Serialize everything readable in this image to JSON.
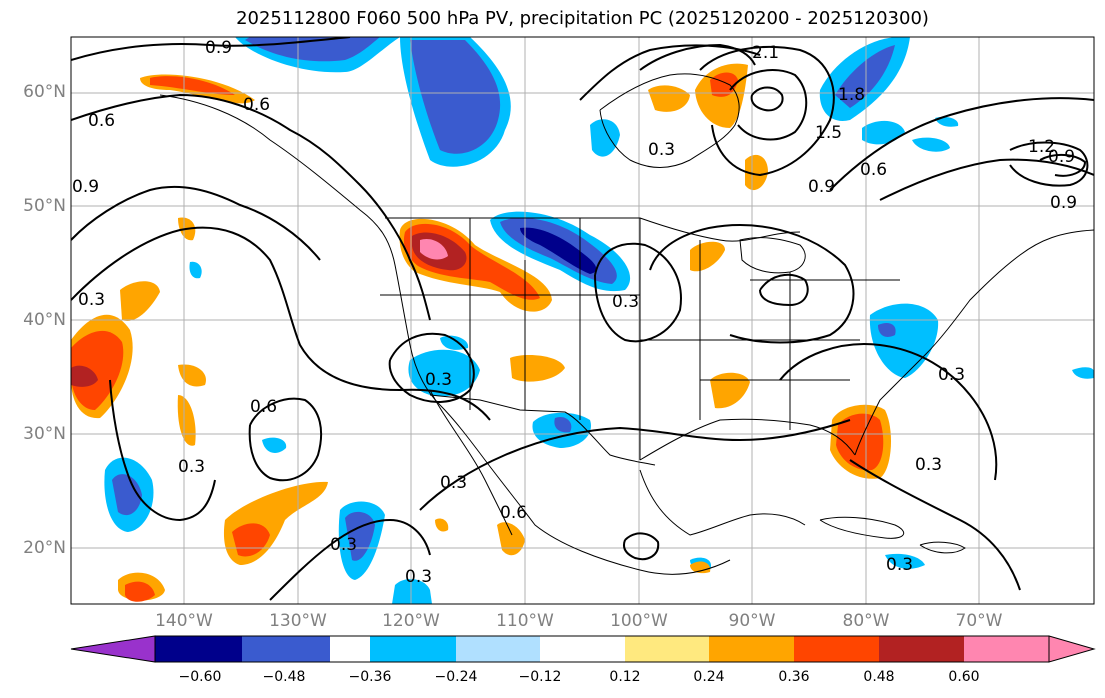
{
  "title": "2025112800 F060 500 hPa PV, precipitation PC (2025120200 - 2025120300)",
  "map": {
    "lat_labels": [
      "60°N",
      "50°N",
      "40°N",
      "30°N",
      "20°N"
    ],
    "lon_labels": [
      "140°W",
      "130°W",
      "120°W",
      "110°W",
      "100°W",
      "90°W",
      "80°W",
      "70°W"
    ],
    "contour_labels": [
      "0.9",
      "0.6",
      "0.6",
      "0.9",
      "0.3",
      "0.3",
      "0.3",
      "0.6",
      "0.3",
      "0.3",
      "0.3",
      "0.3",
      "0.3",
      "0.3",
      "0.9",
      "0.6",
      "1.5",
      "1.8",
      "2.1",
      "0.9",
      "0.9",
      "1.2",
      "0.3",
      "0.3",
      "0.6"
    ],
    "gridline_color": "#b0b0b0",
    "contour_color": "#000000"
  },
  "colorbar": {
    "tick_labels": [
      "−0.60",
      "−0.48",
      "−0.36",
      "−0.24",
      "−0.12",
      "0.12",
      "0.24",
      "0.36",
      "0.48",
      "0.60"
    ],
    "colors": [
      "#9932cc",
      "#00008b",
      "#3a5bcf",
      "#00bfff",
      "#b0e0ff",
      "#ffffff",
      "#ffe97f",
      "#ffa500",
      "#ff4500",
      "#b22222",
      "#ff86b0"
    ]
  }
}
